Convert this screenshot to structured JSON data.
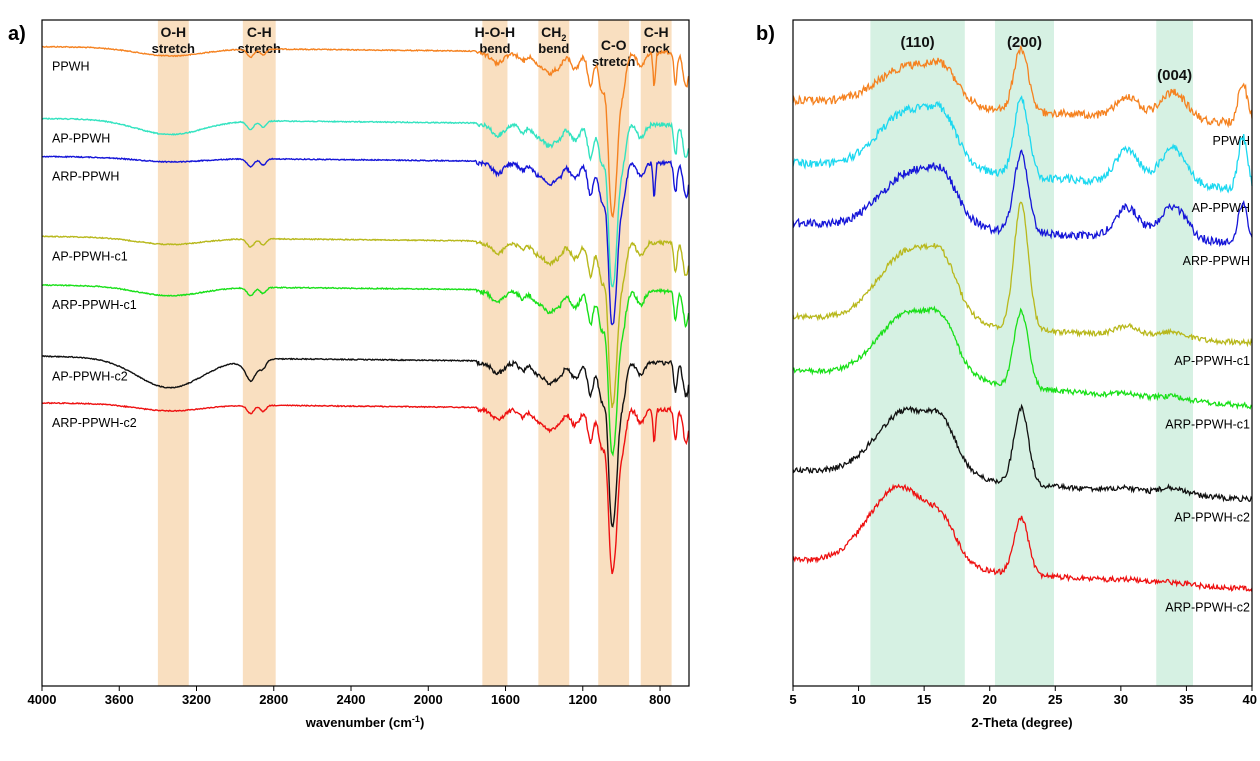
{
  "chart_data": [
    {
      "panel": "a)",
      "type": "line",
      "xlabel": "wavenumber (cm",
      "xlabel_sup": "-1",
      "xlabel_tail": ")",
      "ylabel": "",
      "xlim": [
        4000,
        650
      ],
      "x_reversed": true,
      "xticks": [
        4000,
        3600,
        3200,
        2800,
        2400,
        2000,
        1600,
        1200,
        800
      ],
      "grid": false,
      "bands": [
        {
          "label": "O-H",
          "sub": "stretch",
          "from": 3400,
          "to": 3240
        },
        {
          "label": "C-H",
          "sub": "stretch",
          "from": 2960,
          "to": 2790
        },
        {
          "label": "H-O-H",
          "sub": "bend",
          "from": 1720,
          "to": 1590
        },
        {
          "label": "CH",
          "label_sub": "2",
          "sub": "bend",
          "from": 1430,
          "to": 1270
        },
        {
          "label": "C-O",
          "sub": "stretch",
          "from": 1120,
          "to": 960
        },
        {
          "label": "C-H",
          "sub": "rock",
          "from": 900,
          "to": 740
        }
      ],
      "band_color": "#f9dfc0",
      "series": [
        {
          "name": "PPWH",
          "color": "#f58220",
          "baseline": 0.04
        },
        {
          "name": "AP-PPWH",
          "color": "#33e3c0",
          "baseline": 0.148
        },
        {
          "name": "ARP-PPWH",
          "color": "#1515d8",
          "baseline": 0.205
        },
        {
          "name": "AP-PPWH-c1",
          "color": "#b8b81c",
          "baseline": 0.325
        },
        {
          "name": "ARP-PPWH-c1",
          "color": "#19e019",
          "baseline": 0.398
        },
        {
          "name": "AP-PPWH-c2",
          "color": "#111111",
          "baseline": 0.505
        },
        {
          "name": "ARP-PPWH-c2",
          "color": "#ee1111",
          "baseline": 0.575
        }
      ]
    },
    {
      "panel": "b)",
      "type": "line",
      "xlabel": "2-Theta (degree)",
      "ylabel": "",
      "xlim": [
        5,
        40
      ],
      "xticks": [
        5,
        10,
        15,
        20,
        25,
        30,
        35,
        40
      ],
      "grid": false,
      "bands": [
        {
          "label": "(110)",
          "from": 10.9,
          "to": 18.1
        },
        {
          "label": "(200)",
          "from": 20.4,
          "to": 24.9
        },
        {
          "label": "(004)",
          "from": 32.7,
          "to": 35.5
        }
      ],
      "band_color": "#d6f1e3",
      "series": [
        {
          "name": "PPWH",
          "color": "#f58220",
          "baseline": 0.12
        },
        {
          "name": "AP-PPWH",
          "color": "#1cd8f0",
          "baseline": 0.215
        },
        {
          "name": "ARP-PPWH",
          "color": "#1515d8",
          "baseline": 0.305
        },
        {
          "name": "AP-PPWH-c1",
          "color": "#b8b81c",
          "baseline": 0.445
        },
        {
          "name": "ARP-PPWH-c1",
          "color": "#19e019",
          "baseline": 0.525
        },
        {
          "name": "AP-PPWH-c2",
          "color": "#111111",
          "baseline": 0.675
        },
        {
          "name": "ARP-PPWH-c2",
          "color": "#ee1111",
          "baseline": 0.81
        }
      ]
    }
  ]
}
